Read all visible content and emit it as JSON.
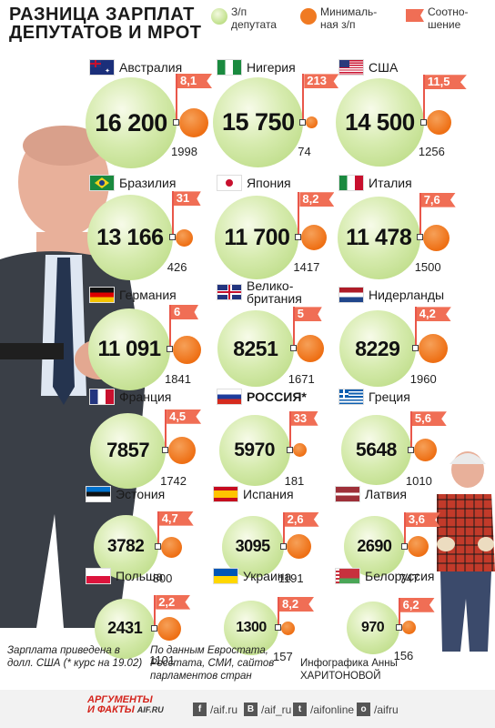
{
  "title": "РАЗНИЦА ЗАРПЛАТ ДЕПУТАТОВ И МРОТ",
  "legend": [
    {
      "key": "green",
      "label": "З/п депутата",
      "color": "#c7e496"
    },
    {
      "key": "orange",
      "label": "Минималь-ная з/п",
      "color": "#f07a22"
    },
    {
      "key": "flag",
      "label": "Соотно-шение",
      "color": "#f06e55"
    }
  ],
  "chart_data": {
    "type": "table",
    "columns": [
      "country",
      "mp_salary",
      "min_wage",
      "ratio"
    ],
    "rows": [
      {
        "country": "Австралия",
        "mp_salary": "16 200",
        "min_wage": "1998",
        "ratio": "8,1",
        "flag": "au"
      },
      {
        "country": "Нигерия",
        "mp_salary": "15 750",
        "min_wage": "74",
        "ratio": "213",
        "flag": "ng"
      },
      {
        "country": "США",
        "mp_salary": "14 500",
        "min_wage": "1256",
        "ratio": "11,5",
        "flag": "us"
      },
      {
        "country": "Бразилия",
        "mp_salary": "13 166",
        "min_wage": "426",
        "ratio": "31",
        "flag": "br"
      },
      {
        "country": "Япония",
        "mp_salary": "11 700",
        "min_wage": "1417",
        "ratio": "8,2",
        "flag": "jp"
      },
      {
        "country": "Италия",
        "mp_salary": "11 478",
        "min_wage": "1500",
        "ratio": "7,6",
        "flag": "it"
      },
      {
        "country": "Германия",
        "mp_salary": "11 091",
        "min_wage": "1841",
        "ratio": "6",
        "flag": "de"
      },
      {
        "country": "Велико-британия",
        "mp_salary": "8251",
        "min_wage": "1671",
        "ratio": "5",
        "flag": "gb"
      },
      {
        "country": "Нидерланды",
        "mp_salary": "8229",
        "min_wage": "1960",
        "ratio": "4,2",
        "flag": "nl"
      },
      {
        "country": "Франция",
        "mp_salary": "7857",
        "min_wage": "1742",
        "ratio": "4,5",
        "flag": "fr"
      },
      {
        "country": "РОССИЯ*",
        "mp_salary": "5970",
        "min_wage": "181",
        "ratio": "33",
        "flag": "ru"
      },
      {
        "country": "Греция",
        "mp_salary": "5648",
        "min_wage": "1010",
        "ratio": "5,6",
        "flag": "gr"
      },
      {
        "country": "Эстония",
        "mp_salary": "3782",
        "min_wage": "800",
        "ratio": "4,7",
        "flag": "ee"
      },
      {
        "country": "Испания",
        "mp_salary": "3095",
        "min_wage": "1191",
        "ratio": "2,6",
        "flag": "es"
      },
      {
        "country": "Латвия",
        "mp_salary": "2690",
        "min_wage": "747",
        "ratio": "3,6",
        "flag": "lv"
      },
      {
        "country": "Польша",
        "mp_salary": "2431",
        "min_wage": "1101",
        "ratio": "2,2",
        "flag": "pl"
      },
      {
        "country": "Украина",
        "mp_salary": "1300",
        "min_wage": "157",
        "ratio": "8,2",
        "flag": "ua"
      },
      {
        "country": "Белоруссия",
        "mp_salary": "970",
        "min_wage": "156",
        "ratio": "6,2",
        "flag": "by"
      }
    ]
  },
  "footnotes": {
    "left": "Зарплата приведена в долл. США (* курс на 19.02)",
    "middle": "По данным Евростата, Росстата, СМИ, сайтов парламентов стран",
    "right": "Инфографика Анны ХАРИТОНОВОЙ"
  },
  "footer": {
    "logo_top": "АРГУМЕНТЫ",
    "logo_bottom": "И ФАКТЫ",
    "logo_site": "AIF.RU",
    "social": [
      {
        "icon": "facebook-icon",
        "glyph": "f",
        "label": "/aif.ru"
      },
      {
        "icon": "vk-icon",
        "glyph": "В",
        "label": "/aif_ru"
      },
      {
        "icon": "twitter-icon",
        "glyph": "t",
        "label": "/aifonline"
      },
      {
        "icon": "odnoklassniki-icon",
        "glyph": "о",
        "label": "/aifru"
      }
    ]
  }
}
